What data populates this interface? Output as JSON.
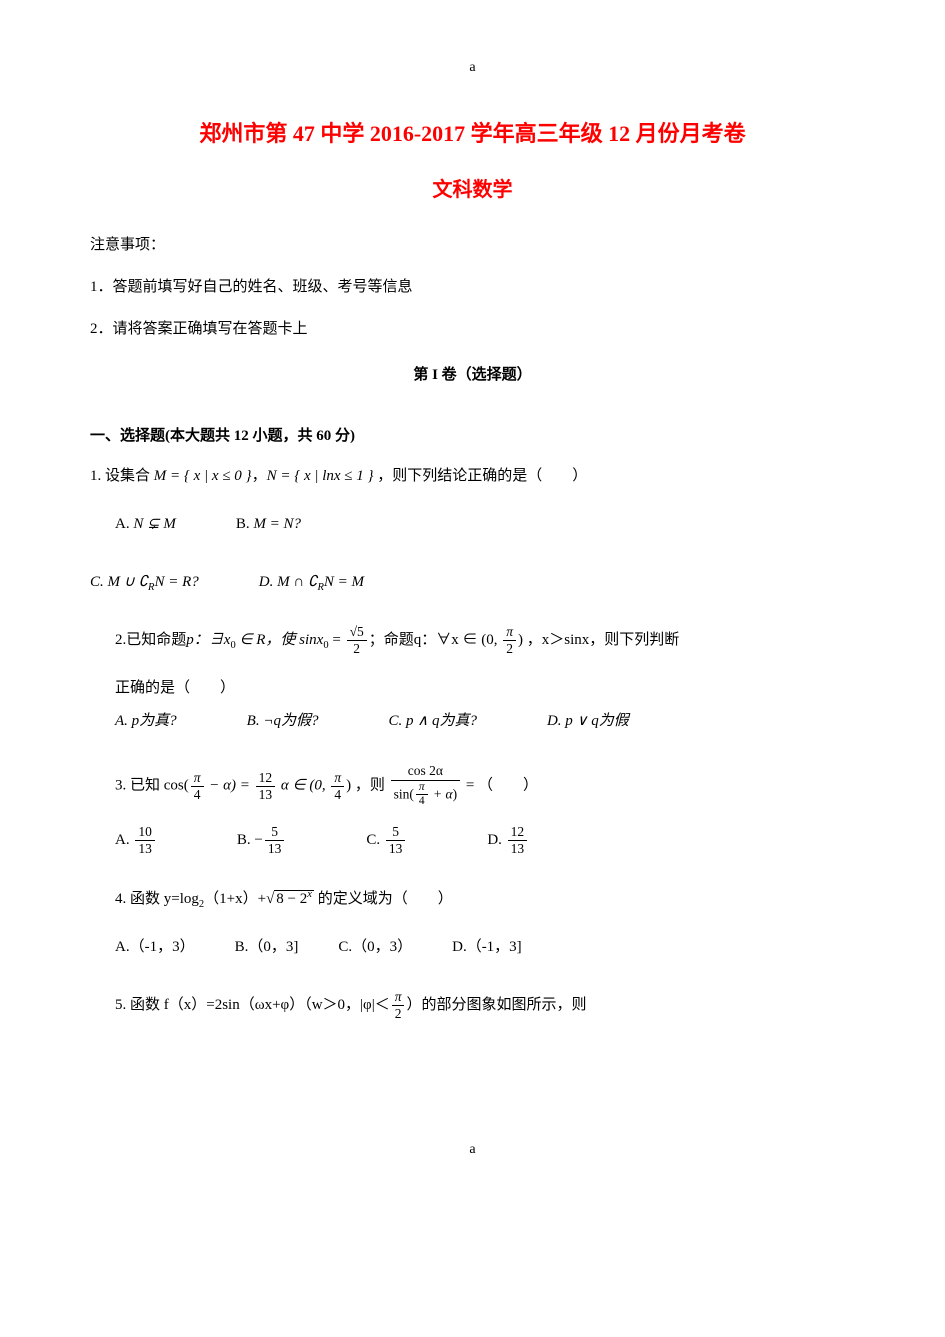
{
  "header_mark": "a",
  "title_main": "郑州市第 47 中学 2016-2017 学年高三年级 12 月份月考卷",
  "title_sub": "文科数学",
  "notice_header": "注意事项：",
  "notice_1": "1．答题前填写好自己的姓名、班级、考号等信息",
  "notice_2": "2．请将答案正确填写在答题卡上",
  "section_part": "第 I 卷（选择题）",
  "section_select": "一、选择题(本大题共 12 小题，共 60 分)",
  "q1": {
    "stem_pre": "1. 设集合 ",
    "m_def": "M = { x | x ≤ 0 }",
    "sep": "，",
    "n_def": "N = { x | lnx ≤ 1 }",
    "stem_post": " ，则下列结论正确的是（　　）",
    "optA": "A.",
    "optA_m": "N ⊊ M",
    "optB": "B.",
    "optB_m": "M = N?",
    "optC": "C.",
    "optC_m": "M ∪ ∁",
    "optC_r": "N = R?",
    "optD": "D.",
    "optD_m": "M ∩ ∁",
    "optD_r": "N = M"
  },
  "q2": {
    "text_1": "2.已知命题",
    "p": "p：∃x",
    "p_sub": "0",
    "p_in": " ∈ R，使 sinx",
    "p_eq": " = ",
    "p_frac_num": "√5",
    "p_frac_den": "2",
    "text_q": "；命题q：∀x ∈ (0, ",
    "pi2_num": "π",
    "pi2_den": "2",
    "text_2": ") ，x＞sinx，则下列判断",
    "text_3": "正确的是（　　）",
    "optA": "A. p为真?",
    "optB": "B. ¬q为假?",
    "optC": "C. p ∧ q为真?",
    "optD": "D. p ∨ q为假"
  },
  "q3": {
    "text_1": "3. 已知 cos(",
    "f1_num": "π",
    "f1_den": "4",
    "text_2": " − α) = ",
    "f2_num": "12",
    "f2_den": "13",
    "text_3": " α ∈ (0, ",
    "f3_num": "π",
    "f3_den": "4",
    "text_4": ") ，则 ",
    "f4_num": "cos 2α",
    "f4_den_pre": "sin",
    "f4_den_in": "π",
    "f4_den_in2": "4",
    "f4_den_post": " + α",
    "text_5": " = （　　）",
    "optA_pre": "A. ",
    "optA_num": "10",
    "optA_den": "13",
    "optB_pre": "B. −",
    "optB_num": "5",
    "optB_den": "13",
    "optC_pre": "C. ",
    "optC_num": "5",
    "optC_den": "13",
    "optD_pre": "D. ",
    "optD_num": "12",
    "optD_den": "13"
  },
  "q4": {
    "text_1": "4. 函数 y=log",
    "sub2": "2",
    "text_2": "（1+x）+",
    "sqrt_content": "8 − 2",
    "sqrt_sup": "x",
    "text_3": " 的定义域为（　　）",
    "optA": "A.（-1，3）",
    "optB": "B.（0，3]",
    "optC": "C.（0，3）",
    "optD": "D.（-1，3]"
  },
  "q5": {
    "text_1": "5. 函数 f（x）=2sin（ωx+φ）（w＞0，|φ|＜",
    "f_num": "π",
    "f_den": "2",
    "text_2": "）的部分图象如图所示，则"
  },
  "footer_mark": "a",
  "subscript_r": "R"
}
